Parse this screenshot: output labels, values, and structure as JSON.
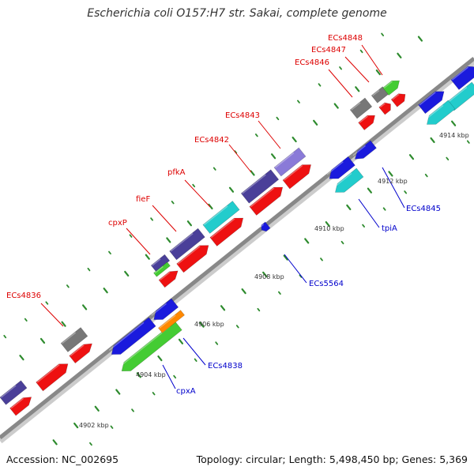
{
  "title": "Escherichia coli O157:H7 str. Sakai, complete genome",
  "footer": {
    "accession": "Accession: NC_002695",
    "summary": "Topology: circular; Length: 5,498,450 bp; Genes: 5,369"
  },
  "colors": {
    "backbone": "#888888",
    "backbone_shadow": "#cccccc",
    "tick": "#2e8b2e",
    "forward_label": "#dd0000",
    "reverse_label": "#0000cc",
    "gene_red": "#ee1111",
    "gene_blue": "#1a1add",
    "gene_cyan": "#22cccc",
    "gene_slate": "#4a3f99",
    "gene_lavender": "#8a7ad8",
    "gene_gray": "#777777",
    "gene_green": "#44cc33",
    "gene_orange": "#ff8800"
  },
  "kbp_labels": [
    "4902 kbp",
    "4904 kbp",
    "4906 kbp",
    "4908 kbp",
    "4910 kbp",
    "4912 kbp",
    "4914 kbp"
  ],
  "forward_gene_labels": [
    "ECs4836",
    "cpxP",
    "fieF",
    "pfkA",
    "ECs4842",
    "ECs4843",
    "ECs4846",
    "ECs4847",
    "ECs4848"
  ],
  "reverse_gene_labels": [
    "cpxA",
    "ECs4838",
    "ECs5564",
    "tpiA",
    "ECs4845"
  ]
}
